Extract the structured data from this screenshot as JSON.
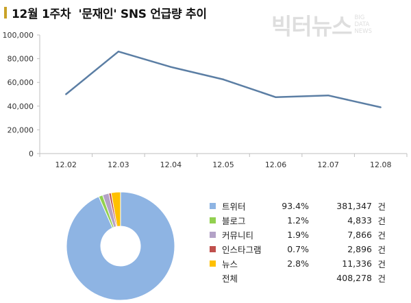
{
  "page": {
    "title": "12월 1주차  '문재인' SNS 언급량 추이"
  },
  "logo": {
    "main": "빅터뉴스",
    "sub": [
      "BIG",
      "DATA",
      "NEWS"
    ]
  },
  "chart_data": [
    {
      "type": "line",
      "x": [
        "12.02",
        "12.03",
        "12.04",
        "12.05",
        "12.06",
        "12.07",
        "12.08"
      ],
      "series": [
        {
          "values": [
            50000,
            86000,
            73000,
            62500,
            47500,
            49000,
            39000
          ]
        }
      ],
      "ylim": [
        0,
        100000
      ],
      "yticks": [
        "0",
        "20,000",
        "40,000",
        "60,000",
        "80,000",
        "100,000"
      ],
      "grid": false,
      "line_color": "#5b7ea4"
    },
    {
      "type": "pie",
      "donut": true,
      "slices": [
        {
          "name": "트위터",
          "percent": "93.4%",
          "value": "381,347",
          "unit": "건",
          "color": "#8eb4e3"
        },
        {
          "name": "블로그",
          "percent": "1.2%",
          "value": "4,833",
          "unit": "건",
          "color": "#92d050"
        },
        {
          "name": "커뮤니티",
          "percent": "1.9%",
          "value": "7,866",
          "unit": "건",
          "color": "#b3a2c7"
        },
        {
          "name": "인스타그램",
          "percent": "0.7%",
          "value": "2,896",
          "unit": "건",
          "color": "#c0504d"
        },
        {
          "name": "뉴스",
          "percent": "2.8%",
          "value": "11,336",
          "unit": "건",
          "color": "#ffc000"
        }
      ],
      "total": {
        "name": "전체",
        "value": "408,278",
        "unit": "건"
      }
    }
  ]
}
